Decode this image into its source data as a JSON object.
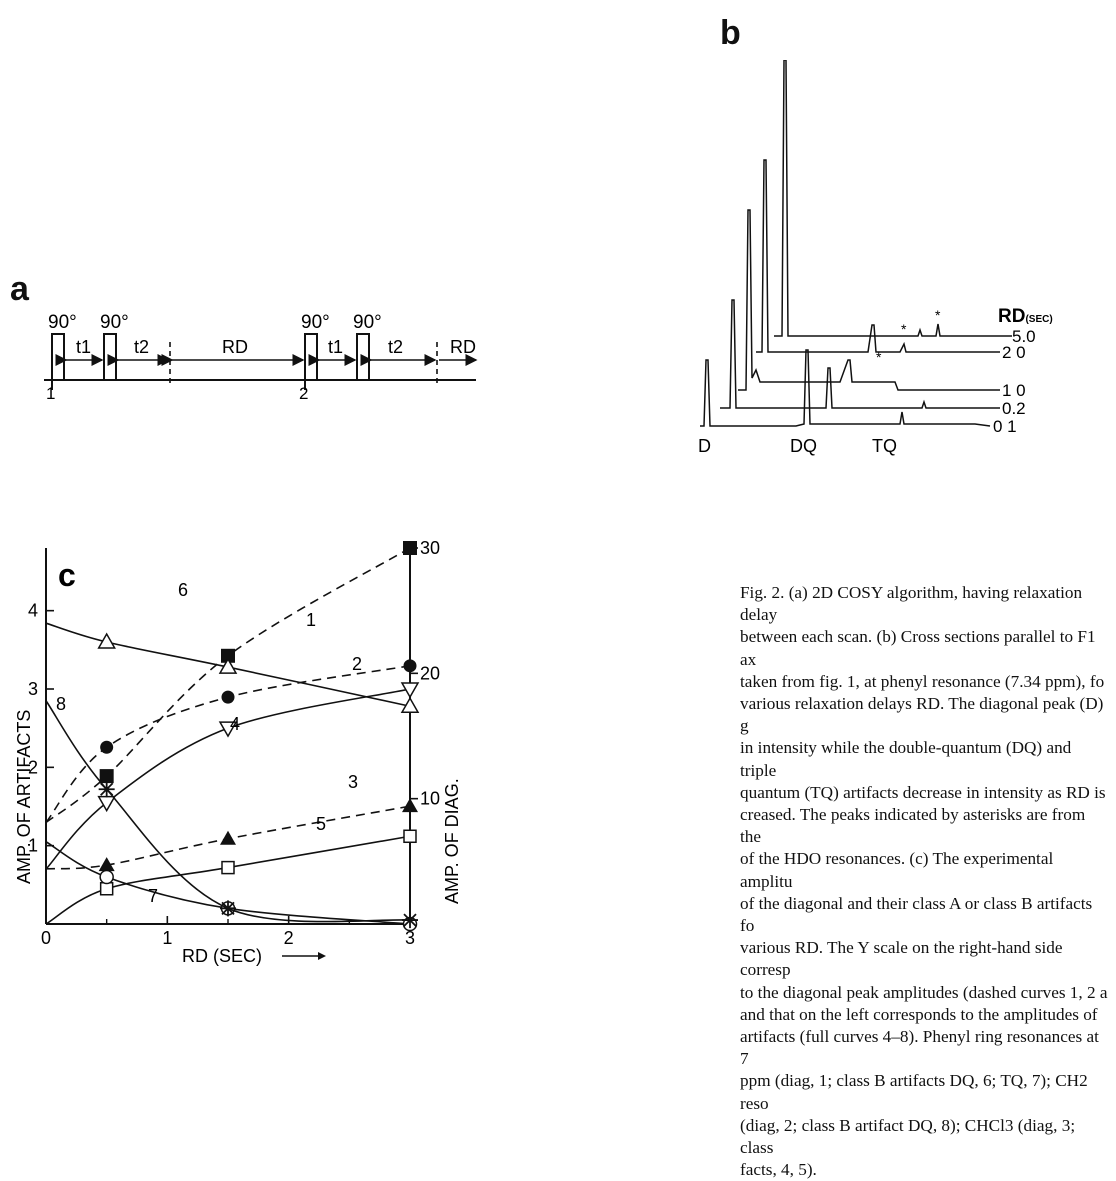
{
  "panel_a": {
    "letter": "a",
    "pulse_labels": [
      "90°",
      "90°",
      "90°",
      "90°"
    ],
    "interval_labels": [
      "t1",
      "t2",
      "RD",
      "t1",
      "t2",
      "RD"
    ],
    "scan_labels": [
      "1",
      "2"
    ]
  },
  "panel_b": {
    "letter": "b",
    "axis_title": "RD",
    "axis_unit": "(SEC)",
    "trace_labels": [
      "5.0",
      "2 0",
      "1 0",
      "0.2",
      "0 1"
    ],
    "peak_labels": [
      "D",
      "DQ",
      "TQ"
    ],
    "asterisk": "*"
  },
  "chart_data": {
    "type": "line",
    "letter": "c",
    "xlabel": "RD (SEC)",
    "ylabel_left": "AMP. OF ARTIFACTS",
    "ylabel_right": "AMP. OF DIAG.",
    "xlim": [
      0,
      3
    ],
    "ylim_left": [
      0,
      4.8
    ],
    "ylim_right": [
      0,
      30
    ],
    "x_ticks": [
      "0",
      "1",
      "2",
      "3"
    ],
    "y_ticks_left": [
      "1",
      "2",
      "3",
      "4"
    ],
    "y_ticks_right": [
      "10",
      "20",
      "30"
    ],
    "series": [
      {
        "name": "1",
        "axis": "right",
        "style": "dashed",
        "marker": "filled-square",
        "x": [
          0,
          0.5,
          1.5,
          3
        ],
        "y": [
          8.1,
          11.8,
          21.4,
          30
        ]
      },
      {
        "name": "2",
        "axis": "right",
        "style": "dashed",
        "marker": "filled-circle",
        "x": [
          0,
          0.5,
          1.5,
          3
        ],
        "y": [
          8.1,
          14.1,
          18.1,
          20.6
        ]
      },
      {
        "name": "3",
        "axis": "right",
        "style": "dashed",
        "marker": "filled-triangle",
        "x": [
          0,
          0.5,
          1.5,
          3
        ],
        "y": [
          4.4,
          4.7,
          6.8,
          9.4
        ]
      },
      {
        "name": "4",
        "axis": "left",
        "style": "solid",
        "marker": "open-triangle-down",
        "x": [
          0,
          0.5,
          1.5,
          3
        ],
        "y": [
          0.7,
          1.55,
          2.5,
          3.0
        ]
      },
      {
        "name": "5",
        "axis": "left",
        "style": "solid",
        "marker": "open-square",
        "x": [
          0,
          0.5,
          1.5,
          3
        ],
        "y": [
          0.0,
          0.45,
          0.72,
          1.12
        ]
      },
      {
        "name": "6",
        "axis": "left",
        "style": "solid",
        "marker": "open-triangle",
        "x": [
          0,
          0.5,
          1.5,
          3
        ],
        "y": [
          3.84,
          3.6,
          3.28,
          2.78
        ]
      },
      {
        "name": "7",
        "axis": "left",
        "style": "solid",
        "marker": "open-circle",
        "x": [
          0,
          0.5,
          1.5,
          3
        ],
        "y": [
          1.05,
          0.6,
          0.2,
          0.0
        ]
      },
      {
        "name": "8",
        "axis": "left",
        "style": "solid",
        "marker": "star",
        "x": [
          0,
          0.5,
          1.5,
          3
        ],
        "y": [
          2.85,
          1.72,
          0.2,
          0.05
        ]
      }
    ]
  },
  "caption": {
    "text": "Fig. 2. (a) 2D COSY algorithm, having relaxation delay\nbetween each scan. (b) Cross sections parallel to F1 ax\ntaken from fig. 1, at phenyl resonance (7.34 ppm), fo\nvarious relaxation delays RD. The diagonal peak (D) g\nin intensity while the double-quantum (DQ) and triple\nquantum (TQ) artifacts decrease in intensity as RD is\ncreased. The peaks indicated by asterisks are from the\nof the HDO resonances. (c) The experimental amplitu\nof the diagonal and their class A or class B artifacts fo\nvarious RD. The Y scale on the right-hand side corresp\nto the diagonal peak amplitudes (dashed curves 1, 2 a\nand that on the left corresponds to the amplitudes of\nartifacts (full curves 4–8). Phenyl ring resonances at 7\nppm (diag, 1; class B artifacts DQ, 6; TQ, 7); CH2 reso\n(diag, 2; class B artifact DQ, 8); CHCl3 (diag, 3; class\nfacts, 4, 5)."
  }
}
